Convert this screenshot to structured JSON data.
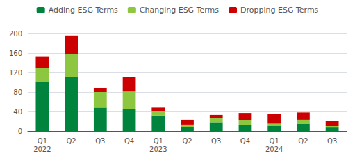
{
  "chart_data": {
    "type": "bar",
    "stacked": true,
    "categories": [
      "Q1\n2022",
      "Q2",
      "Q3",
      "Q4",
      "Q1\n2023",
      "Q2",
      "Q3",
      "Q4",
      "Q1\n2024",
      "Q2",
      "Q3"
    ],
    "series": [
      {
        "name": "Adding ESG Terms",
        "color": "#00843D",
        "values": [
          100,
          110,
          48,
          45,
          32,
          8,
          18,
          12,
          10,
          15,
          7
        ]
      },
      {
        "name": "Changing ESG Terms",
        "color": "#8DC63F",
        "values": [
          30,
          48,
          32,
          36,
          8,
          5,
          8,
          10,
          5,
          8,
          3
        ]
      },
      {
        "name": "Dropping ESG Terms",
        "color": "#CC0000",
        "values": [
          22,
          38,
          8,
          30,
          8,
          10,
          7,
          15,
          20,
          15,
          10
        ]
      }
    ],
    "ylim": [
      0,
      220
    ],
    "yticks": [
      0,
      40,
      80,
      120,
      160,
      200
    ],
    "grid": true,
    "legend": "top"
  }
}
